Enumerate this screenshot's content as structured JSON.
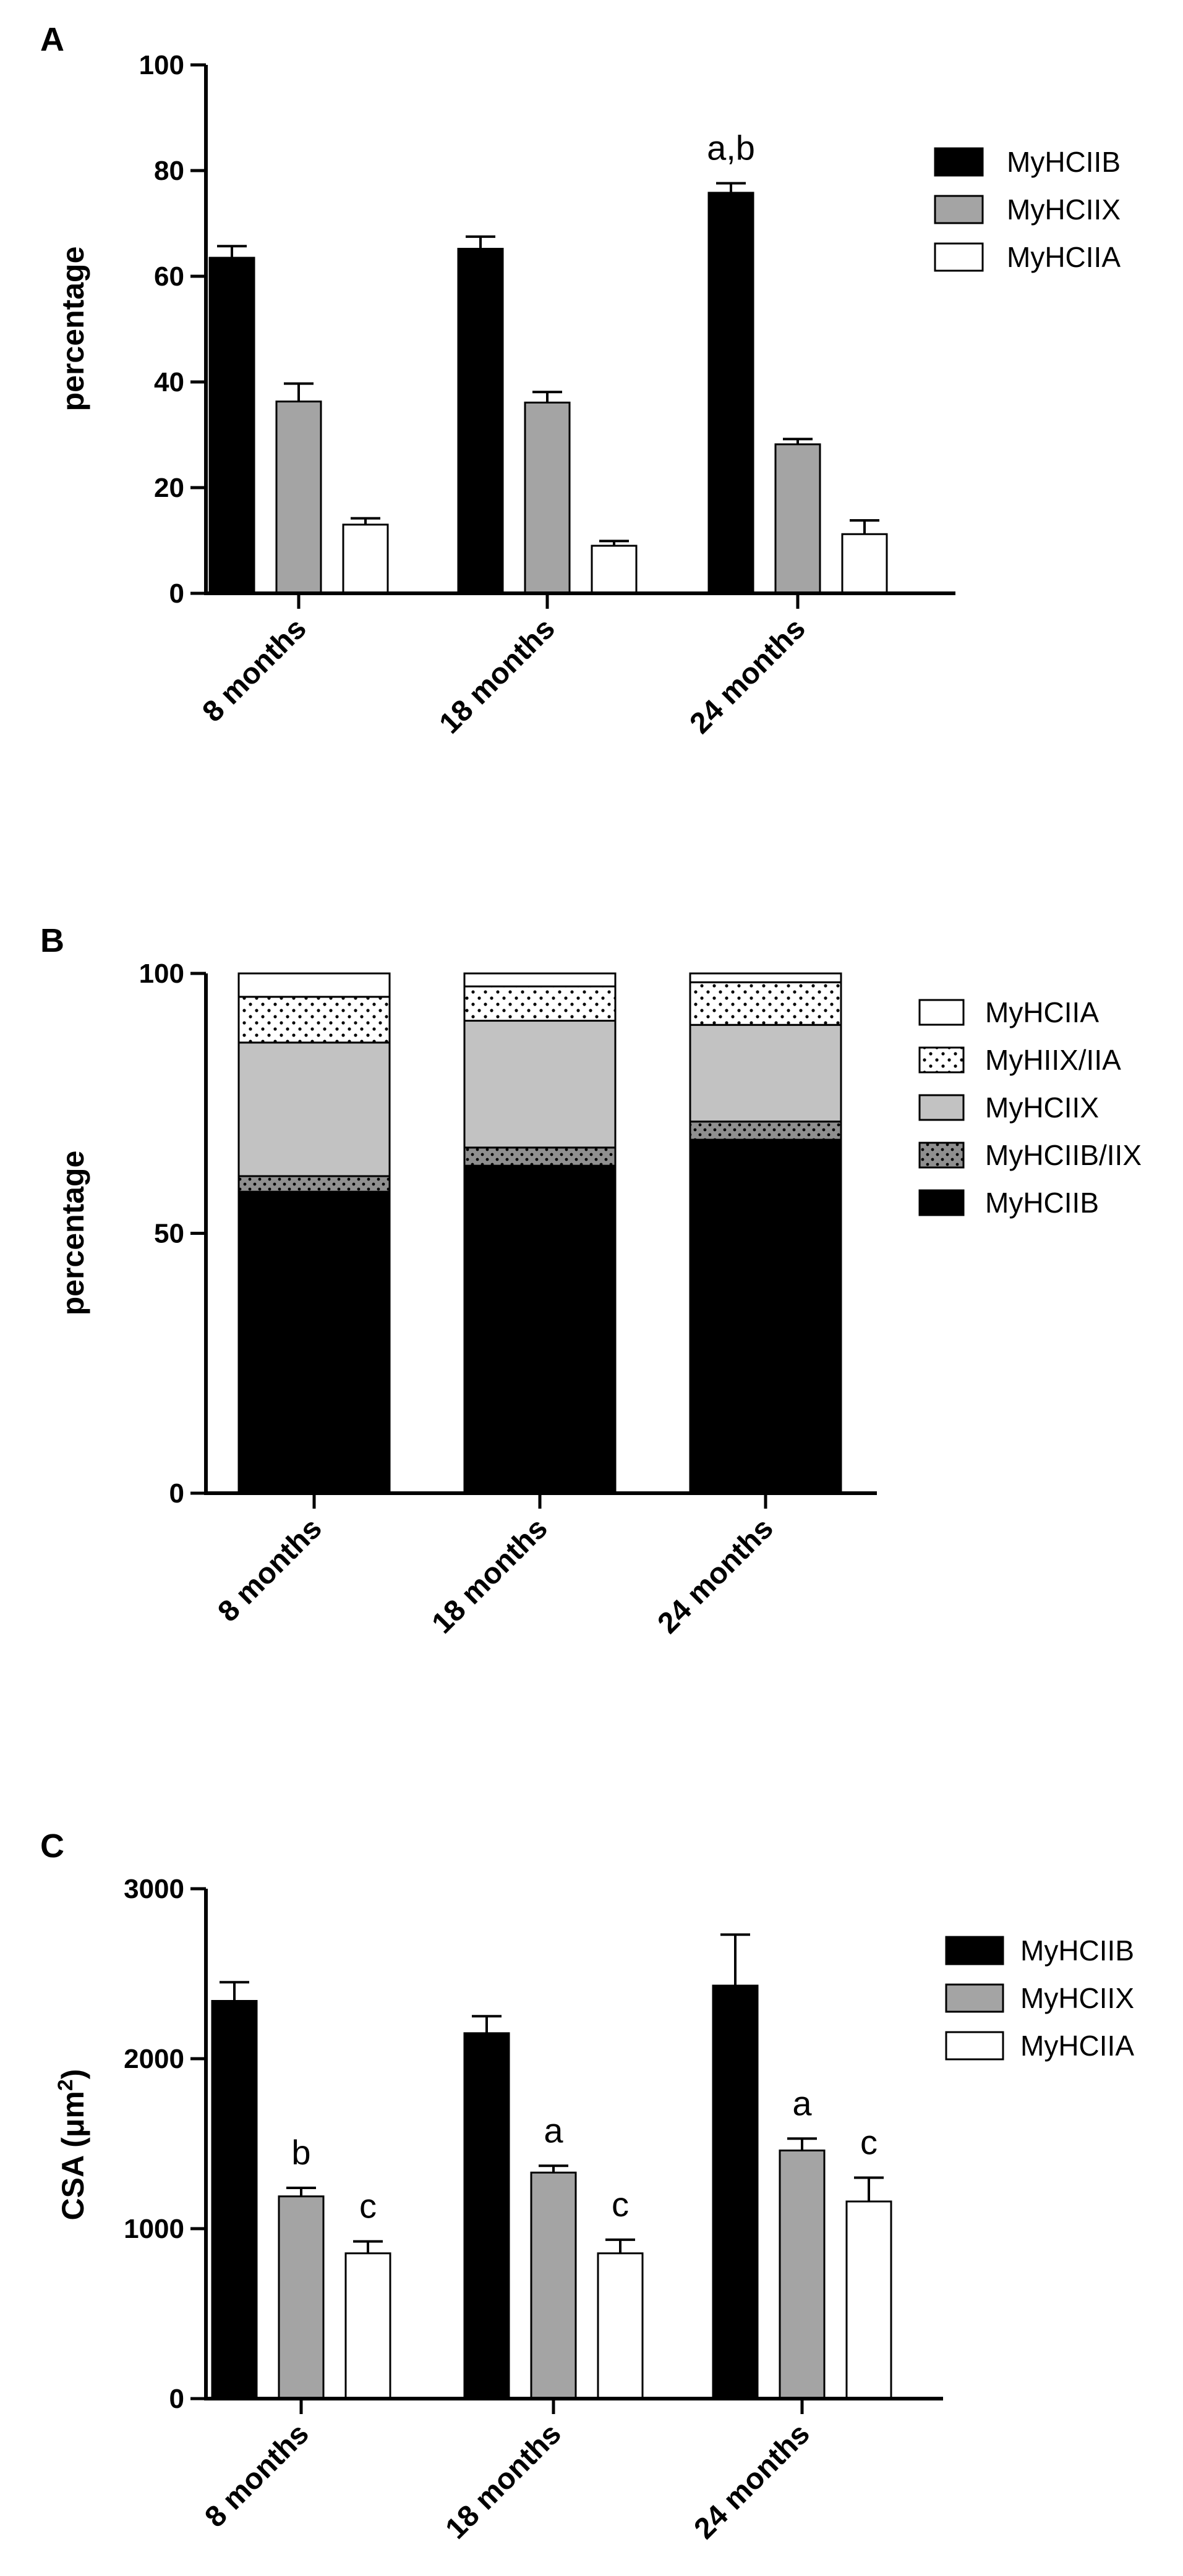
{
  "colors": {
    "MyHCIIB": "#000000",
    "MyHCIIX": "#a4a4a4",
    "MyHCIIA": "#ffffff",
    "MyHCIIB/IIX": "#8f8f8f",
    "MyHIIX/IIA": "#ffffff",
    "stack_MyHCIIX": "#c2c2c2"
  },
  "chart_data": [
    {
      "panel": "A",
      "type": "bar",
      "ylabel": "percentage",
      "ylim": [
        0,
        100
      ],
      "yticks": [
        0,
        20,
        40,
        60,
        80,
        100
      ],
      "categories": [
        "8 months",
        "18 months",
        "24 months"
      ],
      "series": [
        {
          "name": "MyHCIIB",
          "values": [
            63.5,
            65.2,
            75.8
          ],
          "errors": [
            2.2,
            2.3,
            1.8
          ]
        },
        {
          "name": "MyHCIIX",
          "values": [
            36.3,
            36.1,
            28.2
          ],
          "errors": [
            3.4,
            2.0,
            1.0
          ]
        },
        {
          "name": "MyHCIIA",
          "values": [
            13.0,
            9.0,
            11.2
          ],
          "errors": [
            1.2,
            0.9,
            2.6
          ]
        }
      ],
      "annotations": [
        {
          "category": "24 months",
          "series": "MyHCIIB",
          "text": "a,b"
        }
      ],
      "legend": "top-right"
    },
    {
      "panel": "B",
      "type": "bar",
      "stacked": true,
      "ylabel": "percentage",
      "ylim": [
        0,
        100
      ],
      "yticks": [
        0,
        50,
        100
      ],
      "categories": [
        "8 months",
        "18 months",
        "24 months"
      ],
      "series": [
        {
          "name": "MyHCIIB",
          "values": [
            58.0,
            63.0,
            68.0
          ]
        },
        {
          "name": "MyHCIIB/IIX",
          "values": [
            3.0,
            3.5,
            3.5
          ]
        },
        {
          "name": "MyHCIIX",
          "values": [
            25.7,
            24.4,
            18.6
          ]
        },
        {
          "name": "MyHIIX/IIA",
          "values": [
            8.8,
            6.6,
            8.2
          ]
        },
        {
          "name": "MyHCIIA",
          "values": [
            4.5,
            2.5,
            1.7
          ]
        }
      ],
      "legend_order": [
        "MyHCIIA",
        "MyHIIX/IIA",
        "MyHCIIX",
        "MyHCIIB/IIX",
        "MyHCIIB"
      ],
      "legend": "right"
    },
    {
      "panel": "C",
      "type": "bar",
      "ylabel": "CSA (μm",
      "ylabel_sup": "2",
      "ylabel_end": ")",
      "ylim": [
        0,
        3000
      ],
      "yticks": [
        0,
        1000,
        2000,
        3000
      ],
      "categories": [
        "8 months",
        "18 months",
        "24 months"
      ],
      "series": [
        {
          "name": "MyHCIIB",
          "values": [
            2340,
            2150,
            2430
          ],
          "errors": [
            110,
            100,
            300
          ]
        },
        {
          "name": "MyHCIIX",
          "values": [
            1190,
            1330,
            1460
          ],
          "errors": [
            50,
            40,
            70
          ]
        },
        {
          "name": "MyHCIIA",
          "values": [
            855,
            855,
            1160
          ],
          "errors": [
            70,
            80,
            140
          ]
        }
      ],
      "annotations": [
        {
          "category": "8 months",
          "series": "MyHCIIX",
          "text": "b"
        },
        {
          "category": "8 months",
          "series": "MyHCIIA",
          "text": "c"
        },
        {
          "category": "18 months",
          "series": "MyHCIIX",
          "text": "a"
        },
        {
          "category": "18 months",
          "series": "MyHCIIA",
          "text": "c"
        },
        {
          "category": "24 months",
          "series": "MyHCIIX",
          "text": "a"
        },
        {
          "category": "24 months",
          "series": "MyHCIIA",
          "text": "c"
        }
      ],
      "legend": "top-right"
    }
  ]
}
